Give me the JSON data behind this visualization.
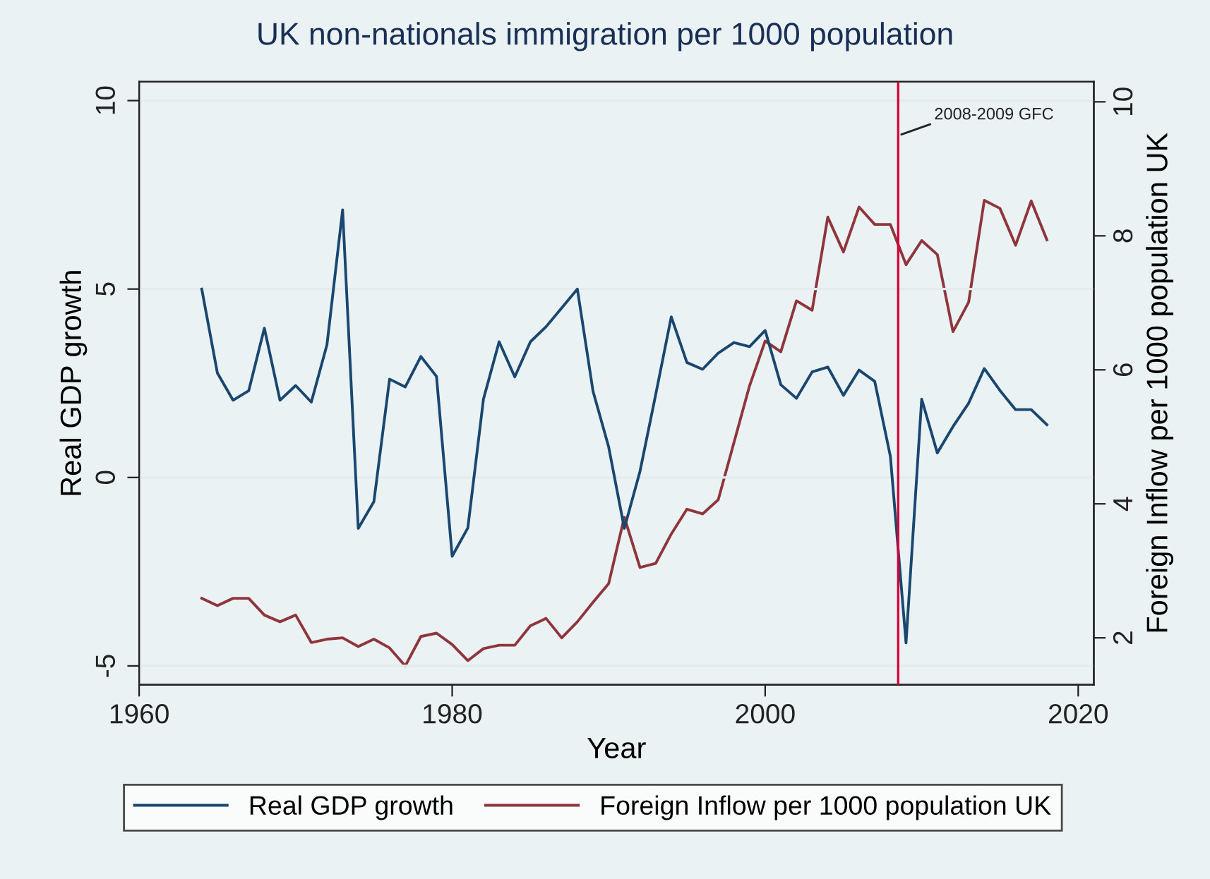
{
  "chart_data": {
    "type": "line",
    "title": "UK non-nationals immigration per 1000 population",
    "xlabel": "Year",
    "ylabel": "Real GDP growth",
    "y2label": "Foreign Inflow per 1000 population UK",
    "x": [
      1964,
      1965,
      1966,
      1967,
      1968,
      1969,
      1970,
      1971,
      1972,
      1973,
      1974,
      1975,
      1976,
      1977,
      1978,
      1979,
      1980,
      1981,
      1982,
      1983,
      1984,
      1985,
      1986,
      1987,
      1988,
      1989,
      1990,
      1991,
      1992,
      1993,
      1994,
      1995,
      1996,
      1997,
      1998,
      1999,
      2000,
      2001,
      2002,
      2003,
      2004,
      2005,
      2006,
      2007,
      2008,
      2009,
      2010,
      2011,
      2012,
      2013,
      2014,
      2015,
      2016,
      2017,
      2018
    ],
    "series": [
      {
        "name": "Real GDP growth",
        "color": "#1a476f",
        "values": [
          5.0,
          2.77,
          2.05,
          2.3,
          3.96,
          2.05,
          2.44,
          2.0,
          3.52,
          7.1,
          -1.35,
          -0.64,
          2.61,
          2.4,
          3.21,
          2.68,
          -2.09,
          -1.34,
          2.08,
          3.6,
          2.67,
          3.6,
          4.0,
          4.5,
          5.0,
          2.29,
          0.81,
          -1.35,
          0.16,
          2.19,
          4.26,
          3.05,
          2.87,
          3.3,
          3.58,
          3.47,
          3.9,
          2.46,
          2.1,
          2.8,
          2.93,
          2.18,
          2.85,
          2.55,
          0.56,
          -4.39,
          2.08,
          0.65,
          1.35,
          1.97,
          2.89,
          2.31,
          1.8,
          1.8,
          1.4
        ]
      },
      {
        "name": "Foreign Inflow per 1000 population UK",
        "color": "#90353b",
        "axis": "y2",
        "values": [
          2.59,
          2.48,
          2.59,
          2.59,
          2.34,
          2.24,
          2.34,
          1.93,
          1.98,
          2.0,
          1.87,
          1.98,
          1.85,
          1.58,
          2.02,
          2.07,
          1.9,
          1.66,
          1.84,
          1.89,
          1.89,
          2.18,
          2.29,
          2.0,
          2.24,
          2.53,
          2.81,
          3.8,
          3.05,
          3.11,
          3.55,
          3.92,
          3.85,
          4.06,
          4.91,
          5.76,
          6.43,
          6.27,
          7.03,
          6.89,
          8.28,
          7.76,
          8.43,
          8.17,
          8.17,
          7.57,
          7.93,
          7.72,
          6.57,
          7.01,
          8.53,
          8.41,
          7.86,
          8.52,
          7.94
        ]
      }
    ],
    "xlim": [
      1960,
      2021
    ],
    "xticks": [
      1960,
      1980,
      2000,
      2020
    ],
    "ylim": [
      -5.5,
      10.5
    ],
    "yticks": [
      -5,
      0,
      5,
      10
    ],
    "y2lim": [
      1.3,
      10.3
    ],
    "y2ticks": [
      2,
      4,
      6,
      8,
      10
    ],
    "ref_lines": [
      {
        "axis": "x",
        "value": 2008.5,
        "label": "2008-2009 GFC",
        "color": "#d6003a"
      }
    ],
    "grid": "y",
    "legend": "bottom",
    "line_style": "solid",
    "marker": "none"
  }
}
